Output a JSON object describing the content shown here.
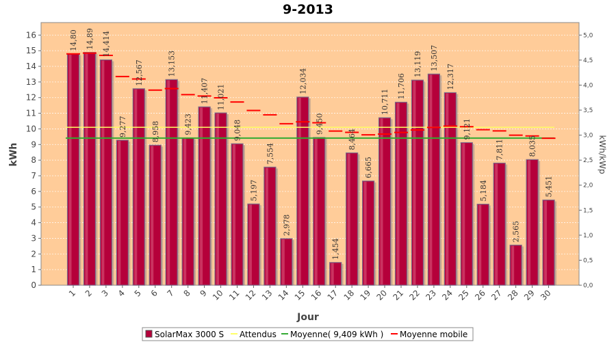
{
  "chart_data": {
    "type": "bar",
    "title": "9-2013",
    "xlabel": "Jour",
    "ylabel": "kWh",
    "y2label": "kWh/kWp",
    "ylim": [
      0,
      16.8
    ],
    "y2lim": [
      0,
      5.25
    ],
    "yticks": [
      0,
      1,
      2,
      3,
      4,
      5,
      6,
      7,
      8,
      9,
      10,
      11,
      12,
      13,
      14,
      15,
      16
    ],
    "y2ticks": [
      "0,0",
      "0,5",
      "1,0",
      "1,5",
      "2,0",
      "2,5",
      "3,0",
      "3,5",
      "4,0",
      "4,5",
      "5,0"
    ],
    "categories": [
      "1",
      "2",
      "3",
      "4",
      "5",
      "6",
      "7",
      "8",
      "9",
      "10",
      "11",
      "12",
      "13",
      "14",
      "15",
      "16",
      "17",
      "18",
      "19",
      "20",
      "21",
      "22",
      "23",
      "24",
      "25",
      "26",
      "27",
      "28",
      "29",
      "30"
    ],
    "series": [
      {
        "name": "SolarMax 3000 S",
        "values": [
          14.8,
          14.89,
          14.414,
          9.277,
          12.567,
          8.958,
          13.153,
          9.423,
          11.407,
          11.021,
          9.048,
          5.197,
          7.554,
          2.978,
          12.034,
          9.45,
          1.454,
          8.464,
          6.665,
          10.711,
          11.706,
          13.119,
          13.507,
          12.317,
          9.121,
          5.184,
          7.811,
          2.565,
          8.035,
          5.451
        ],
        "labels": [
          "14,80",
          "14,89",
          "14,414",
          "9,277",
          "12,567",
          "8,958",
          "13,153",
          "9,423",
          "11,407",
          "11,021",
          "9,048",
          "5,197",
          "7,554",
          "2,978",
          "12,034",
          "9,450",
          "1,454",
          "8,464",
          "6,665",
          "10,711",
          "11,706",
          "13,119",
          "13,507",
          "12,317",
          "9,121",
          "5,184",
          "7,811",
          "2,565",
          "8,035",
          "5,451"
        ],
        "color": "#b5003a"
      },
      {
        "name": "Attendus",
        "value": 10.1,
        "color": "#ffff66"
      },
      {
        "name": "Moyenne( 9,409 kWh )",
        "value": 9.409,
        "color": "#33aa33"
      },
      {
        "name": "Moyenne mobile",
        "values": [
          14.8,
          14.85,
          14.7,
          13.35,
          13.19,
          12.48,
          12.58,
          12.19,
          12.1,
          11.99,
          11.72,
          11.18,
          10.9,
          10.33,
          10.45,
          10.39,
          9.86,
          9.78,
          9.62,
          9.67,
          9.77,
          9.93,
          10.09,
          10.18,
          10.14,
          9.95,
          9.87,
          9.6,
          9.55,
          9.4
        ],
        "color": "#ff0000"
      }
    ],
    "grid": true,
    "legend_position": "bottom",
    "colors": {
      "plot_bg": "#ffcc99",
      "bar_fill": "#b5003a"
    }
  }
}
